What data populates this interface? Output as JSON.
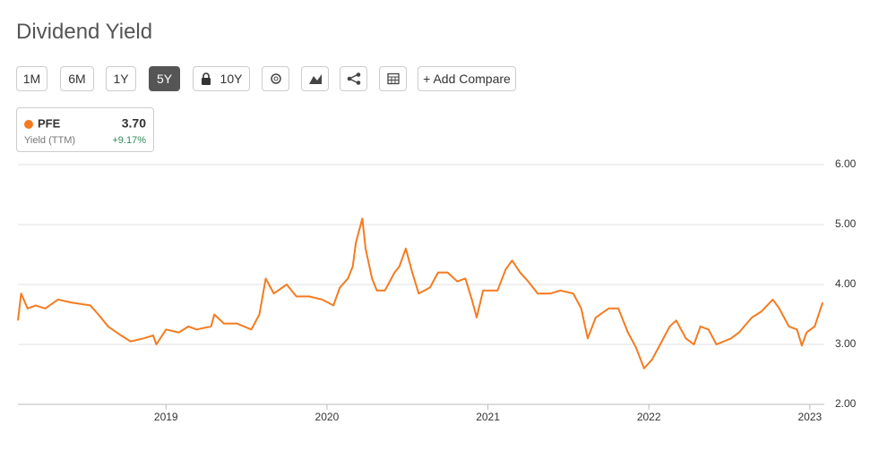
{
  "ui": {
    "buttons": [
      {
        "label": "1M",
        "active": false
      },
      {
        "label": "6M",
        "active": false
      },
      {
        "label": "1Y",
        "active": false
      },
      {
        "label": "5Y",
        "active": true
      },
      {
        "label": "10Y",
        "active": false,
        "locked": true
      }
    ],
    "compare": "+ Add Compare",
    "legend": {
      "value": "3.70",
      "label": "Yield (TTM)",
      "change": "+9.17%"
    }
  },
  "chart_data": {
    "type": "line",
    "title": "Dividend Yield",
    "xlim": [
      2018.08,
      2023.09
    ],
    "xticks": [
      2019,
      2020,
      2021,
      2022,
      2023
    ],
    "ylim": [
      2,
      6
    ],
    "yticks": [
      {
        "value": 2,
        "label": "2.00"
      },
      {
        "value": 3,
        "label": "3.00"
      },
      {
        "value": 4,
        "label": "4.00"
      },
      {
        "value": 5,
        "label": "5.00"
      },
      {
        "value": 6,
        "label": "6.00"
      }
    ],
    "grid": true,
    "series": [
      {
        "name": "PFE",
        "color": "#f47b20",
        "x": [
          2018.08,
          2018.1,
          2018.14,
          2018.19,
          2018.25,
          2018.33,
          2018.41,
          2018.53,
          2018.58,
          2018.64,
          2018.72,
          2018.78,
          2018.86,
          2018.92,
          2018.94,
          2019.0,
          2019.08,
          2019.14,
          2019.19,
          2019.28,
          2019.3,
          2019.36,
          2019.44,
          2019.53,
          2019.58,
          2019.62,
          2019.67,
          2019.75,
          2019.81,
          2019.89,
          2019.97,
          2020.04,
          2020.08,
          2020.13,
          2020.16,
          2020.18,
          2020.22,
          2020.24,
          2020.28,
          2020.31,
          2020.36,
          2020.42,
          2020.45,
          2020.49,
          2020.53,
          2020.57,
          2020.64,
          2020.69,
          2020.75,
          2020.81,
          2020.86,
          2020.9,
          2020.93,
          2020.97,
          2021.06,
          2021.11,
          2021.15,
          2021.2,
          2021.25,
          2021.31,
          2021.39,
          2021.45,
          2021.53,
          2021.58,
          2021.62,
          2021.67,
          2021.75,
          2021.81,
          2021.87,
          2021.92,
          2021.97,
          2022.02,
          2022.08,
          2022.13,
          2022.17,
          2022.23,
          2022.28,
          2022.32,
          2022.37,
          2022.42,
          2022.51,
          2022.56,
          2022.64,
          2022.7,
          2022.77,
          2022.81,
          2022.87,
          2022.92,
          2022.95,
          2022.98,
          2023.03,
          2023.08
        ],
        "values": [
          3.4,
          3.85,
          3.6,
          3.65,
          3.6,
          3.75,
          3.7,
          3.65,
          3.5,
          3.3,
          3.15,
          3.05,
          3.1,
          3.15,
          3.0,
          3.25,
          3.2,
          3.3,
          3.25,
          3.3,
          3.5,
          3.35,
          3.35,
          3.25,
          3.5,
          4.1,
          3.85,
          4.0,
          3.8,
          3.8,
          3.75,
          3.65,
          3.95,
          4.1,
          4.3,
          4.7,
          5.1,
          4.6,
          4.1,
          3.9,
          3.9,
          4.2,
          4.3,
          4.6,
          4.2,
          3.85,
          3.95,
          4.2,
          4.2,
          4.05,
          4.1,
          3.75,
          3.45,
          3.9,
          3.9,
          4.25,
          4.4,
          4.2,
          4.05,
          3.85,
          3.85,
          3.9,
          3.85,
          3.6,
          3.1,
          3.45,
          3.6,
          3.6,
          3.2,
          2.95,
          2.6,
          2.75,
          3.05,
          3.3,
          3.4,
          3.1,
          3.0,
          3.3,
          3.25,
          3.0,
          3.1,
          3.2,
          3.45,
          3.55,
          3.75,
          3.6,
          3.3,
          3.25,
          2.98,
          3.2,
          3.3,
          3.7
        ]
      }
    ]
  }
}
